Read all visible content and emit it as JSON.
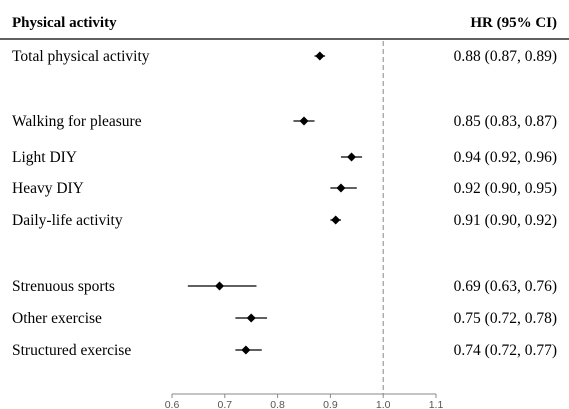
{
  "chart_data": {
    "type": "forest",
    "headers": {
      "left": "Physical activity",
      "right": "HR (95% CI)"
    },
    "reference_line": 1.0,
    "xlim": [
      0.6,
      1.1
    ],
    "x_ticks": [
      "0.6",
      "0.7",
      "0.8",
      "0.9",
      "1.0",
      "1.1"
    ],
    "groups": [
      {
        "rows": [
          {
            "label": "Total physical activity",
            "hr": 0.88,
            "lower": 0.87,
            "upper": 0.89,
            "text": "0.88 (0.87, 0.89)"
          }
        ]
      },
      {
        "rows": [
          {
            "label": "Walking for pleasure",
            "hr": 0.85,
            "lower": 0.83,
            "upper": 0.87,
            "text": "0.85 (0.83, 0.87)"
          },
          {
            "label": "Light DIY",
            "hr": 0.94,
            "lower": 0.92,
            "upper": 0.96,
            "text": "0.94 (0.92, 0.96)"
          },
          {
            "label": "Heavy DIY",
            "hr": 0.92,
            "lower": 0.9,
            "upper": 0.95,
            "text": "0.92 (0.90, 0.95)"
          },
          {
            "label": "Daily-life activity",
            "hr": 0.91,
            "lower": 0.9,
            "upper": 0.92,
            "text": "0.91 (0.90, 0.92)"
          }
        ]
      },
      {
        "rows": [
          {
            "label": "Strenuous sports",
            "hr": 0.69,
            "lower": 0.63,
            "upper": 0.76,
            "text": "0.69 (0.63, 0.76)"
          },
          {
            "label": "Other exercise",
            "hr": 0.75,
            "lower": 0.72,
            "upper": 0.78,
            "text": "0.75 (0.72, 0.78)"
          },
          {
            "label": "Structured exercise",
            "hr": 0.74,
            "lower": 0.72,
            "upper": 0.77,
            "text": "0.74 (0.72, 0.77)"
          }
        ]
      }
    ]
  }
}
